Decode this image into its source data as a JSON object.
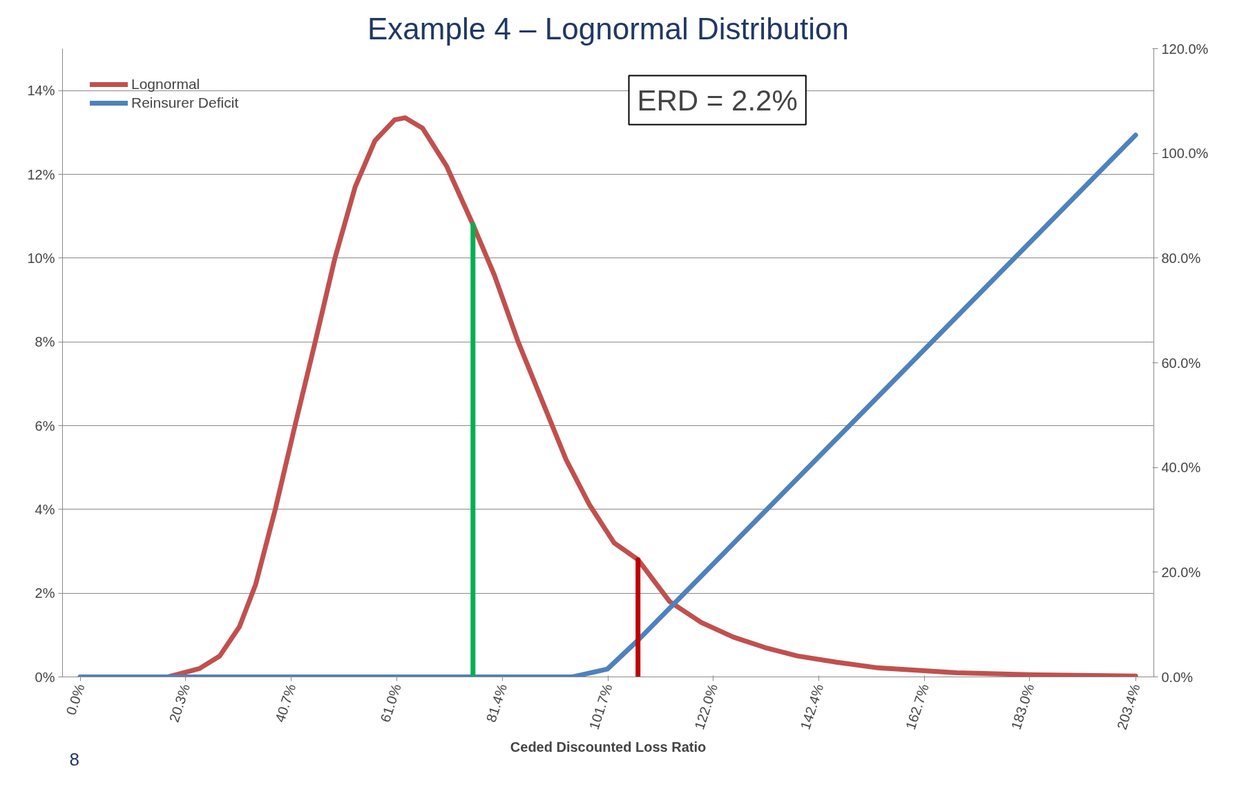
{
  "chart_data": {
    "type": "line",
    "title": "Example 4 – Lognormal Distribution",
    "xlabel": "Ceded Discounted Loss Ratio",
    "xlim": [
      -3.4,
      206.9
    ],
    "xticks": [
      {
        "value": 0,
        "label": "0.0%"
      },
      {
        "value": 20.3,
        "label": "20.3%"
      },
      {
        "value": 40.7,
        "label": "40.7%"
      },
      {
        "value": 61.0,
        "label": "61.0%"
      },
      {
        "value": 81.4,
        "label": "81.4%"
      },
      {
        "value": 101.7,
        "label": "101.7%"
      },
      {
        "value": 122.0,
        "label": "122.0%"
      },
      {
        "value": 142.4,
        "label": "142.4%"
      },
      {
        "value": 162.7,
        "label": "162.7%"
      },
      {
        "value": 183.0,
        "label": "183.0%"
      },
      {
        "value": 203.4,
        "label": "203.4%"
      }
    ],
    "ylim": [
      0,
      15
    ],
    "yticks": [
      {
        "value": 0,
        "label": "0%"
      },
      {
        "value": 2,
        "label": "2%"
      },
      {
        "value": 4,
        "label": "4%"
      },
      {
        "value": 6,
        "label": "6%"
      },
      {
        "value": 8,
        "label": "8%"
      },
      {
        "value": 10,
        "label": "10%"
      },
      {
        "value": 12,
        "label": "12%"
      },
      {
        "value": 14,
        "label": "14%"
      }
    ],
    "y2lim": [
      0,
      120
    ],
    "y2ticks": [
      {
        "value": 0,
        "label": "0.0%"
      },
      {
        "value": 20,
        "label": "20.0%"
      },
      {
        "value": 40,
        "label": "40.0%"
      },
      {
        "value": 60,
        "label": "60.0%"
      },
      {
        "value": 80,
        "label": "80.0%"
      },
      {
        "value": 100,
        "label": "100.0%"
      },
      {
        "value": 120,
        "label": "120.0%"
      }
    ],
    "grid": "y",
    "legend": "top left",
    "marker": "none",
    "line_style": "solid",
    "annotations": [
      "ERD = 2.2%",
      "8"
    ],
    "series": [
      {
        "name": "Lognormal",
        "color": "#c0504d",
        "x": [
          0,
          16.9,
          23.0,
          26.9,
          30.7,
          33.8,
          37.6,
          41.4,
          45.3,
          49.1,
          53.0,
          56.8,
          60.6,
          62.6,
          66.0,
          70.6,
          75.7,
          79.8,
          84.4,
          89.0,
          93.6,
          98.2,
          102.9,
          107.5,
          113.6,
          119.7,
          125.9,
          132.0,
          138.2,
          145.8,
          153.5,
          168.9,
          184.2,
          203.4
        ],
        "values": [
          0,
          0,
          0.2,
          0.5,
          1.2,
          2.2,
          4.0,
          6.0,
          8.0,
          10.0,
          11.7,
          12.8,
          13.3,
          13.35,
          13.1,
          12.2,
          10.8,
          9.6,
          8.0,
          6.6,
          5.2,
          4.1,
          3.2,
          2.8,
          1.8,
          1.3,
          0.95,
          0.7,
          0.5,
          0.35,
          0.22,
          0.1,
          0.05,
          0.02
        ]
      },
      {
        "name": "Reinsurer Deficit",
        "color": "#4f81bd",
        "axis": "y2",
        "x": [
          0,
          94.9,
          101.6,
          107.5,
          203.4
        ],
        "values": [
          0,
          0,
          1.5,
          7.0,
          103.5
        ]
      },
      {
        "color": "#00b050",
        "x": [
          75.7,
          75.7
        ],
        "values": [
          0,
          10.8
        ]
      },
      {
        "color": "#c00000",
        "x": [
          107.5,
          107.5
        ],
        "values": [
          0,
          2.8
        ]
      }
    ]
  }
}
